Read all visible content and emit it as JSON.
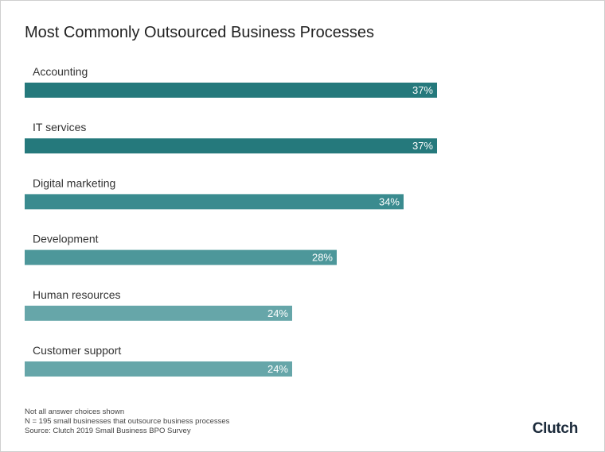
{
  "chart_data": {
    "type": "bar",
    "orientation": "horizontal",
    "title": "Most Commonly Outsourced Business Processes",
    "categories": [
      "Accounting",
      "IT services",
      "Digital marketing",
      "Development",
      "Human resources",
      "Customer support"
    ],
    "values": [
      37,
      37,
      34,
      28,
      24,
      24
    ],
    "value_labels": [
      "37%",
      "37%",
      "34%",
      "28%",
      "24%",
      "24%"
    ],
    "colors": [
      "#25797c",
      "#25797c",
      "#3a8b8f",
      "#4d979a",
      "#66a6a9",
      "#66a6a9"
    ],
    "xlabel": "",
    "ylabel": "",
    "xlim": [
      0,
      52
    ],
    "grid": false,
    "legend": "none"
  },
  "notes": [
    "Not all answer choices shown",
    "N = 195 small businesses that outsource business processes",
    "Source: Clutch 2019 Small Business BPO Survey"
  ],
  "logo": {
    "text": "Clutch"
  }
}
